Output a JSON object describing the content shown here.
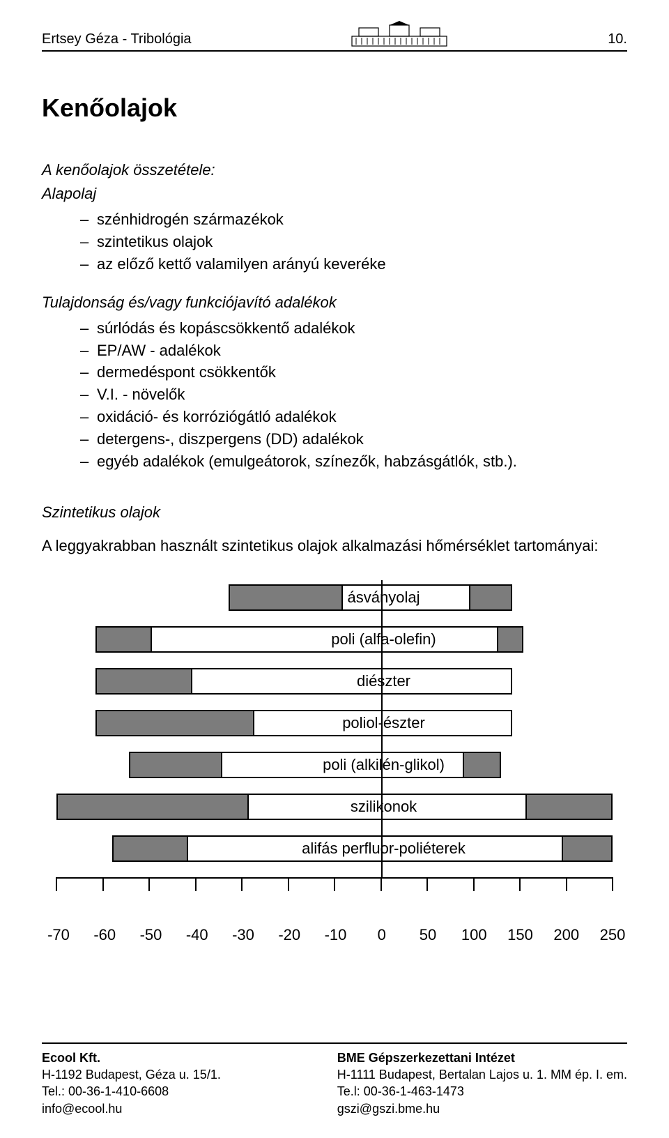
{
  "header": {
    "author": "Ertsey Géza - Tribológia",
    "pageno": "10."
  },
  "title": "Kenőolajok",
  "composition_label": "A kenőolajok összetétele:",
  "alapolaj_label": "Alapolaj",
  "alapolaj_items": [
    "szénhidrogén származékok",
    "szintetikus olajok",
    "az előző kettő valamilyen arányú keveréke"
  ],
  "adalekok_label": "Tulajdonság és/vagy funkciójavító adalékok",
  "adalekok_items": [
    "súrlódás és kopáscsökkentő adalékok",
    "EP/AW - adalékok",
    "dermedéspont csökkentők",
    "V.I. - növelők",
    "oxidáció- és korróziógátló adalékok",
    "detergens-, diszpergens (DD) adalékok",
    "egyéb adalékok (emulgeátorok, színezők, habzásgátlók, stb.)."
  ],
  "szintetikus_label": "Szintetikus olajok",
  "szintetikus_desc": "A leggyakrabban használt szintetikus olajok alkalmazási hőmérséklet tartományai:",
  "chart": {
    "axis_min": -70,
    "axis_max": 250,
    "tick_values": [
      -70,
      -60,
      -50,
      -40,
      -30,
      -20,
      -10,
      0,
      50,
      100,
      150,
      200,
      250
    ],
    "bar_border": "#000000",
    "gray": "#7c7c7c",
    "white": "#ffffff",
    "bars": [
      {
        "label": "ásványolaj",
        "left_pct": 31.0,
        "width_pct": 51.0,
        "gray_l_pct": 40.0,
        "gray_r_pct": 15.0
      },
      {
        "label": "poli (alfa-olefin)",
        "left_pct": 7.0,
        "width_pct": 77.0,
        "gray_l_pct": 13.0,
        "gray_r_pct": 6.0
      },
      {
        "label": "diészter",
        "left_pct": 7.0,
        "width_pct": 75.0,
        "gray_l_pct": 23.0,
        "gray_r_pct": 0.0
      },
      {
        "label": "poliol-észter",
        "left_pct": 7.0,
        "width_pct": 75.0,
        "gray_l_pct": 38.0,
        "gray_r_pct": 0.0
      },
      {
        "label": "poli (alkilén-glikol)",
        "left_pct": 13.0,
        "width_pct": 67.0,
        "gray_l_pct": 25.0,
        "gray_r_pct": 10.0
      },
      {
        "label": "szilikonok",
        "left_pct": 0.0,
        "width_pct": 100.0,
        "gray_l_pct": 34.5,
        "gray_r_pct": 15.5
      },
      {
        "label": "alifás perfluor-poliéterek",
        "left_pct": 10.0,
        "width_pct": 90.0,
        "gray_l_pct": 15.0,
        "gray_r_pct": 10.0
      }
    ]
  },
  "footer": {
    "left": {
      "name": "Ecool Kft.",
      "addr": "H-1192 Budapest, Géza u. 15/1.",
      "tel": "Tel.: 00-36-1-410-6608",
      "mail": "info@ecool.hu"
    },
    "right": {
      "name": "BME Gépszerkezettani Intézet",
      "addr": "H-1111 Budapest, Bertalan Lajos u. 1. MM ép. I. em.",
      "tel": "Te.l: 00-36-1-463-1473",
      "mail": "gszi@gszi.bme.hu"
    }
  }
}
